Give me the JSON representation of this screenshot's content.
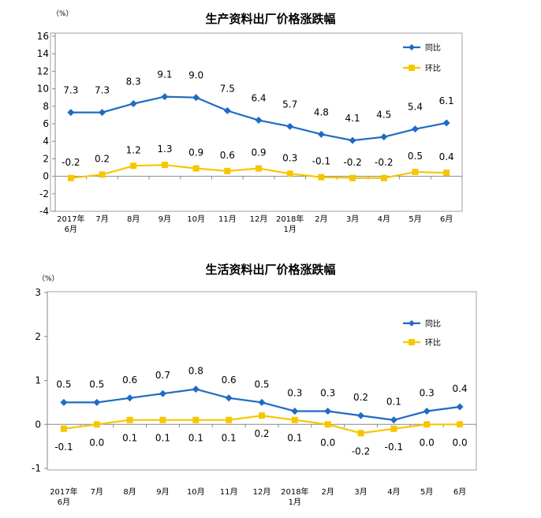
{
  "colors": {
    "yoy": "#1f6bc4",
    "mom": "#f7c600",
    "frame": "#a0a0a0"
  },
  "chart_data": [
    {
      "type": "line",
      "title": "生产资料出厂价格涨跌幅",
      "unit": "（%）",
      "categories": [
        [
          "2017年",
          "6月"
        ],
        [
          "7月"
        ],
        [
          "8月"
        ],
        [
          "9月"
        ],
        [
          "10月"
        ],
        [
          "11月"
        ],
        [
          "12月"
        ],
        [
          "2018年",
          "1月"
        ],
        [
          "2月"
        ],
        [
          "3月"
        ],
        [
          "4月"
        ],
        [
          "5月"
        ],
        [
          "6月"
        ]
      ],
      "ylim": [
        -4,
        16
      ],
      "yticks": [
        -4,
        -2,
        0,
        2,
        4,
        6,
        8,
        10,
        12,
        14,
        16
      ],
      "legend": "top-right",
      "series": [
        {
          "name": "同比",
          "key": "yoy",
          "marker": "diamond",
          "values": [
            7.3,
            7.3,
            8.3,
            9.1,
            9.0,
            7.5,
            6.4,
            5.7,
            4.8,
            4.1,
            4.5,
            5.4,
            6.1
          ],
          "labels": [
            "7.3",
            "7.3",
            "8.3",
            "9.1",
            "9.0",
            "7.5",
            "6.4",
            "5.7",
            "4.8",
            "4.1",
            "4.5",
            "5.4",
            "6.1"
          ]
        },
        {
          "name": "环比",
          "key": "mom",
          "marker": "square",
          "values": [
            -0.2,
            0.2,
            1.2,
            1.3,
            0.9,
            0.6,
            0.9,
            0.3,
            -0.1,
            -0.2,
            -0.2,
            0.5,
            0.4
          ],
          "labels": [
            "-0.2",
            "0.2",
            "1.2",
            "1.3",
            "0.9",
            "0.6",
            "0.9",
            "0.3",
            "-0.1",
            "-0.2",
            "-0.2",
            "0.5",
            "0.4"
          ]
        }
      ]
    },
    {
      "type": "line",
      "title": "生活资料出厂价格涨跌幅",
      "unit": "（%）",
      "categories": [
        [
          "2017年",
          "6月"
        ],
        [
          "7月"
        ],
        [
          "8月"
        ],
        [
          "9月"
        ],
        [
          "10月"
        ],
        [
          "11月"
        ],
        [
          "12月"
        ],
        [
          "2018年",
          "1月"
        ],
        [
          "2月"
        ],
        [
          "3月"
        ],
        [
          "4月"
        ],
        [
          "5月"
        ],
        [
          "6月"
        ]
      ],
      "ylim": [
        -1,
        3
      ],
      "yticks": [
        -1,
        0,
        1,
        2,
        3
      ],
      "legend": "top-right",
      "series": [
        {
          "name": "同比",
          "key": "yoy",
          "marker": "diamond",
          "values": [
            0.5,
            0.5,
            0.6,
            0.7,
            0.8,
            0.6,
            0.5,
            0.3,
            0.3,
            0.2,
            0.1,
            0.3,
            0.4
          ],
          "labels": [
            "0.5",
            "0.5",
            "0.6",
            "0.7",
            "0.8",
            "0.6",
            "0.5",
            "0.3",
            "0.3",
            "0.2",
            "0.1",
            "0.3",
            "0.4"
          ]
        },
        {
          "name": "环比",
          "key": "mom",
          "marker": "square",
          "values": [
            -0.1,
            0.0,
            0.1,
            0.1,
            0.1,
            0.1,
            0.2,
            0.1,
            0.0,
            -0.2,
            -0.1,
            0.0,
            0.0
          ],
          "labels": [
            "-0.1",
            "0.0",
            "0.1",
            "0.1",
            "0.1",
            "0.1",
            "0.2",
            "0.1",
            "0.0",
            "-0.2",
            "-0.1",
            "0.0",
            "0.0"
          ]
        }
      ]
    }
  ]
}
